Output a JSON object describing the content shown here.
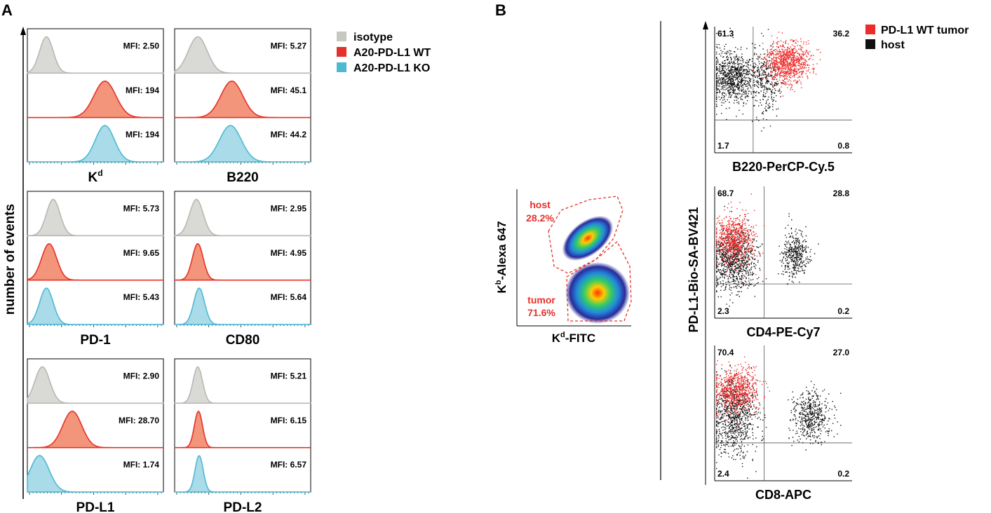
{
  "colors": {
    "isotype_fill": "#d9d9d5",
    "isotype_line": "#b8b8b3",
    "wt_fill": "#f2957a",
    "wt_line": "#e5312b",
    "ko_fill": "#a9dbe8",
    "ko_line": "#4db9d3",
    "annotation_red": "#e5312b",
    "host_dot": "#111111",
    "tumor_dot": "#ee2a2a"
  },
  "icons": {
    "legend_swatch": "square-swatch-icon"
  },
  "panel_a": {
    "label": "A",
    "y_label": "number of events",
    "legend": [
      {
        "name": "isotype",
        "color": "#c8c8c3"
      },
      {
        "name": "A20-PD-L1 WT",
        "color": "#e5312b"
      },
      {
        "name": "A20-PD-L1 KO",
        "color": "#4db9d3"
      }
    ]
  },
  "panel_b": {
    "label": "B",
    "gate_plot": {
      "x_label_base": "K",
      "x_label_sup": "d",
      "x_label_rest": "-FITC",
      "y_label_base": "K",
      "y_label_sup": "b",
      "y_label_rest": "-Alexa 647",
      "gates": [
        {
          "name": "host",
          "percent": "28.2%"
        },
        {
          "name": "tumor",
          "percent": "71.6%"
        }
      ]
    },
    "shared_y_label": "PD-L1-Bio-SA-BV421",
    "legend": [
      {
        "name": "PD-L1 WT tumor",
        "color": "#ee2a2a"
      },
      {
        "name": "host",
        "color": "#111111"
      }
    ]
  },
  "chart_data": [
    {
      "type": "histogram-overlay",
      "title": "",
      "xlabel": "K",
      "xlabel_sup": "d",
      "ylabel": "number of events",
      "series": [
        {
          "name": "isotype",
          "mfi_label": "MFI: 2.50",
          "peak_position": 0.14,
          "width": 0.05
        },
        {
          "name": "A20-PD-L1 WT",
          "mfi_label": "MFI: 194",
          "peak_position": 0.57,
          "width": 0.08
        },
        {
          "name": "A20-PD-L1 KO",
          "mfi_label": "MFI: 194",
          "peak_position": 0.57,
          "width": 0.07
        }
      ]
    },
    {
      "type": "histogram-overlay",
      "title": "",
      "xlabel": "B220",
      "xlabel_sup": "",
      "ylabel": "number of events",
      "series": [
        {
          "name": "isotype",
          "mfi_label": "MFI: 5.27",
          "peak_position": 0.17,
          "width": 0.07
        },
        {
          "name": "A20-PD-L1 WT",
          "mfi_label": "MFI: 45.1",
          "peak_position": 0.42,
          "width": 0.08
        },
        {
          "name": "A20-PD-L1 KO",
          "mfi_label": "MFI: 44.2",
          "peak_position": 0.41,
          "width": 0.08
        }
      ]
    },
    {
      "type": "histogram-overlay",
      "title": "",
      "xlabel": "PD-1",
      "xlabel_sup": "",
      "ylabel": "number of events",
      "series": [
        {
          "name": "isotype",
          "mfi_label": "MFI: 5.73",
          "peak_position": 0.19,
          "width": 0.05
        },
        {
          "name": "A20-PD-L1 WT",
          "mfi_label": "MFI: 9.65",
          "peak_position": 0.16,
          "width": 0.055
        },
        {
          "name": "A20-PD-L1 KO",
          "mfi_label": "MFI: 5.43",
          "peak_position": 0.14,
          "width": 0.05
        }
      ]
    },
    {
      "type": "histogram-overlay",
      "title": "",
      "xlabel": "CD80",
      "xlabel_sup": "",
      "ylabel": "number of events",
      "series": [
        {
          "name": "isotype",
          "mfi_label": "MFI: 2.95",
          "peak_position": 0.16,
          "width": 0.05
        },
        {
          "name": "A20-PD-L1 WT",
          "mfi_label": "MFI: 4.95",
          "peak_position": 0.17,
          "width": 0.04
        },
        {
          "name": "A20-PD-L1 KO",
          "mfi_label": "MFI: 5.64",
          "peak_position": 0.18,
          "width": 0.04
        }
      ]
    },
    {
      "type": "histogram-overlay",
      "title": "",
      "xlabel": "PD-L1",
      "xlabel_sup": "",
      "ylabel": "number of events",
      "series": [
        {
          "name": "isotype",
          "mfi_label": "MFI: 2.90",
          "peak_position": 0.11,
          "width": 0.055
        },
        {
          "name": "A20-PD-L1 WT",
          "mfi_label": "MFI: 28.70",
          "peak_position": 0.33,
          "width": 0.07
        },
        {
          "name": "A20-PD-L1 KO",
          "mfi_label": "MFI: 1.74",
          "peak_position": 0.09,
          "width": 0.07
        }
      ]
    },
    {
      "type": "histogram-overlay",
      "title": "",
      "xlabel": "PD-L2",
      "xlabel_sup": "",
      "ylabel": "number of events",
      "series": [
        {
          "name": "isotype",
          "mfi_label": "MFI: 5.21",
          "peak_position": 0.17,
          "width": 0.035
        },
        {
          "name": "A20-PD-L1 WT",
          "mfi_label": "MFI: 6.15",
          "peak_position": 0.175,
          "width": 0.03
        },
        {
          "name": "A20-PD-L1 KO",
          "mfi_label": "MFI: 6.57",
          "peak_position": 0.18,
          "width": 0.03
        }
      ]
    },
    {
      "type": "scatter",
      "title": "",
      "xlabel": "Kd-FITC",
      "ylabel": "Kb-Alexa 647",
      "populations": [
        {
          "name": "host",
          "percent": 28.2,
          "center": [
            0.42,
            0.52
          ],
          "spread": [
            0.12,
            0.07
          ]
        },
        {
          "name": "tumor",
          "percent": 71.6,
          "center": [
            0.56,
            0.23
          ],
          "spread": [
            0.1,
            0.12
          ]
        }
      ]
    },
    {
      "type": "quadrant-scatter",
      "title": "",
      "xlabel": "B220-PerCP-Cy.5",
      "ylabel": "PD-L1-Bio-SA-BV421",
      "quadrants": {
        "upper_left": "61.3",
        "upper_right": "36.2",
        "lower_left": "1.7",
        "lower_right": "0.8"
      }
    },
    {
      "type": "quadrant-scatter",
      "title": "",
      "xlabel": "CD4-PE-Cy7",
      "ylabel": "PD-L1-Bio-SA-BV421",
      "quadrants": {
        "upper_left": "68.7",
        "upper_right": "28.8",
        "lower_left": "2.3",
        "lower_right": "0.2"
      }
    },
    {
      "type": "quadrant-scatter",
      "title": "",
      "xlabel": "CD8-APC",
      "ylabel": "PD-L1-Bio-SA-BV421",
      "quadrants": {
        "upper_left": "70.4",
        "upper_right": "27.0",
        "lower_left": "2.4",
        "lower_right": "0.2"
      }
    }
  ]
}
